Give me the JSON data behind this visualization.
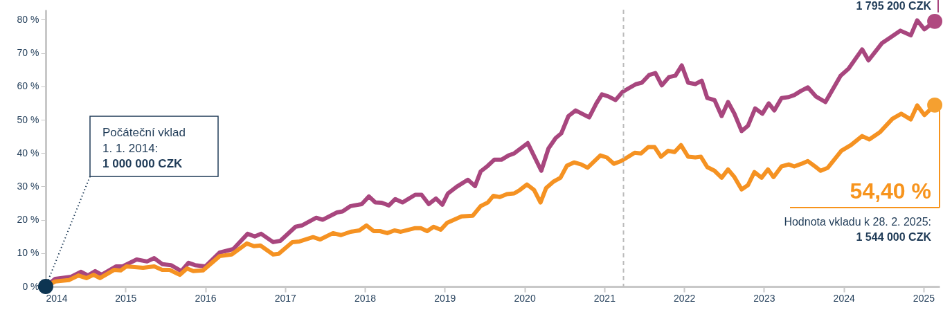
{
  "chart_data": {
    "type": "line",
    "xlim": [
      2014,
      2025.2
    ],
    "xticks": [
      2014,
      2015,
      2016,
      2017,
      2018,
      2019,
      2020,
      2021,
      2022,
      2023,
      2024,
      2025
    ],
    "ylim": [
      0,
      83
    ],
    "yticks": [
      {
        "value": 0,
        "label": "0 %"
      },
      {
        "value": 10,
        "label": "10 %"
      },
      {
        "value": 20,
        "label": "20 %"
      },
      {
        "value": 30,
        "label": "30 %"
      },
      {
        "value": 40,
        "label": "40 %"
      },
      {
        "value": 50,
        "label": "50 %"
      },
      {
        "value": 60,
        "label": "60 %"
      },
      {
        "value": 70,
        "label": "70 %"
      },
      {
        "value": 80,
        "label": "80 %"
      }
    ],
    "grid": false,
    "line_style": "solid",
    "marker": "none",
    "series": [
      {
        "color": "#a8467e",
        "x": [
          2014.0,
          2014.12,
          2014.32,
          2014.44,
          2014.53,
          2014.62,
          2014.7,
          2014.88,
          2014.96,
          2015.14,
          2015.27,
          2015.36,
          2015.46,
          2015.57,
          2015.7,
          2015.79,
          2015.87,
          2016.0,
          2016.18,
          2016.35,
          2016.53,
          2016.62,
          2016.7,
          2016.85,
          2016.94,
          2017.13,
          2017.21,
          2017.39,
          2017.47,
          2017.65,
          2017.72,
          2017.82,
          2017.96,
          2018.05,
          2018.13,
          2018.21,
          2018.3,
          2018.38,
          2018.47,
          2018.63,
          2018.71,
          2018.8,
          2018.89,
          2018.97,
          2019.04,
          2019.15,
          2019.29,
          2019.38,
          2019.45,
          2019.54,
          2019.62,
          2019.71,
          2019.8,
          2019.87,
          2020.04,
          2020.21,
          2020.3,
          2020.39,
          2020.46,
          2020.55,
          2020.64,
          2020.81,
          2020.9,
          2020.97,
          2021.05,
          2021.14,
          2021.23,
          2021.31,
          2021.4,
          2021.47,
          2021.56,
          2021.64,
          2021.72,
          2021.81,
          2021.89,
          2021.97,
          2022.05,
          2022.14,
          2022.22,
          2022.29,
          2022.38,
          2022.47,
          2022.55,
          2022.63,
          2022.72,
          2022.8,
          2022.89,
          2022.98,
          2023.06,
          2023.13,
          2023.22,
          2023.31,
          2023.38,
          2023.46,
          2023.55,
          2023.65,
          2023.77,
          2023.96,
          2024.06,
          2024.23,
          2024.31,
          2024.48,
          2024.58,
          2024.71,
          2024.84,
          2024.92,
          2025.01,
          2025.14
        ],
        "values": [
          0,
          2.3,
          2.9,
          4.4,
          3.3,
          4.6,
          3.5,
          6,
          6,
          8.1,
          7.5,
          8.5,
          6.7,
          6.4,
          4.6,
          7.1,
          6.4,
          6,
          10.2,
          11.2,
          15.8,
          15,
          15.8,
          13.3,
          13.7,
          17.9,
          18.3,
          20.6,
          20,
          22.2,
          22.5,
          24.1,
          24.7,
          27,
          25.2,
          25.1,
          24.3,
          26.2,
          25.2,
          27.5,
          27.5,
          24.7,
          26.4,
          24.5,
          27.9,
          29.9,
          32,
          30.1,
          34.5,
          36.2,
          38,
          38,
          39.3,
          39.9,
          43,
          34.7,
          41.4,
          44.5,
          45.9,
          51.1,
          52.8,
          50.7,
          54.9,
          57.6,
          57,
          55.9,
          58.4,
          59.5,
          60.7,
          61.1,
          63.4,
          64,
          60.3,
          62.8,
          63.2,
          66.3,
          61.1,
          60.7,
          61.7,
          56.5,
          55.9,
          51.1,
          55.3,
          51.8,
          46.6,
          48.2,
          53.4,
          51.8,
          54.9,
          52.8,
          56.5,
          56.8,
          57.4,
          58.6,
          59.7,
          57,
          55.3,
          63.2,
          65.3,
          71.1,
          67.8,
          73,
          74.6,
          76.7,
          75.3,
          79.8,
          77.1,
          79.5
        ]
      },
      {
        "color": "#f59222",
        "x": [
          2014.0,
          2014.12,
          2014.29,
          2014.41,
          2014.51,
          2014.6,
          2014.68,
          2014.86,
          2014.94,
          2015.01,
          2015.22,
          2015.36,
          2015.46,
          2015.55,
          2015.68,
          2015.77,
          2015.85,
          2015.97,
          2016.18,
          2016.33,
          2016.52,
          2016.61,
          2016.69,
          2016.85,
          2016.92,
          2017.09,
          2017.18,
          2017.35,
          2017.44,
          2017.6,
          2017.7,
          2017.82,
          2017.93,
          2018.02,
          2018.11,
          2018.19,
          2018.28,
          2018.37,
          2018.45,
          2018.63,
          2018.7,
          2018.78,
          2018.86,
          2018.95,
          2019.03,
          2019.21,
          2019.35,
          2019.45,
          2019.54,
          2019.61,
          2019.69,
          2019.78,
          2019.87,
          2019.94,
          2020.03,
          2020.12,
          2020.2,
          2020.27,
          2020.36,
          2020.45,
          2020.53,
          2020.62,
          2020.71,
          2020.79,
          2020.95,
          2021.03,
          2021.12,
          2021.21,
          2021.3,
          2021.38,
          2021.46,
          2021.55,
          2021.63,
          2021.71,
          2021.8,
          2021.88,
          2021.96,
          2022.05,
          2022.14,
          2022.21,
          2022.29,
          2022.38,
          2022.47,
          2022.55,
          2022.63,
          2022.72,
          2022.8,
          2022.88,
          2022.97,
          2023.05,
          2023.12,
          2023.22,
          2023.31,
          2023.38,
          2023.47,
          2023.55,
          2023.65,
          2023.71,
          2023.8,
          2023.97,
          2024.09,
          2024.23,
          2024.32,
          2024.45,
          2024.61,
          2024.72,
          2024.84,
          2024.92,
          2025.01,
          2025.14
        ],
        "values": [
          0,
          1.5,
          1.9,
          3.3,
          2.5,
          3.5,
          2.5,
          5,
          4.8,
          6,
          5.6,
          6,
          5,
          5,
          3.5,
          5.4,
          4.6,
          4.8,
          9.1,
          9.6,
          12.9,
          12.1,
          12.3,
          9.6,
          9.8,
          13.3,
          13.5,
          14.8,
          14.1,
          16,
          15.4,
          16.4,
          16.8,
          18.3,
          16.6,
          16.6,
          16,
          16.8,
          16.4,
          17.5,
          17.5,
          16.6,
          17.9,
          17,
          19.1,
          21,
          21.2,
          24.1,
          25.2,
          27.2,
          26.8,
          27.7,
          27.9,
          28.9,
          30.6,
          28.9,
          25.2,
          29.5,
          31.4,
          32.6,
          36.2,
          37.2,
          36.6,
          35.6,
          39.3,
          38.7,
          36.8,
          37.6,
          38.9,
          40.1,
          39.9,
          41.8,
          41.8,
          38.9,
          40.7,
          40.3,
          42.4,
          38.9,
          38.7,
          38.9,
          35.8,
          34.7,
          32.6,
          35.1,
          32.8,
          29.1,
          30.4,
          34.3,
          32.6,
          35.1,
          32.8,
          36,
          36.6,
          36,
          36.8,
          37.6,
          35.8,
          34.7,
          35.6,
          40.7,
          42.4,
          45.1,
          44.1,
          46.2,
          50.3,
          51.8,
          50.1,
          54.3,
          51.4,
          54.4
        ]
      },
      {
        "type": "scatter",
        "marker": "circle",
        "color": "#0d3552",
        "x": [
          2014
        ],
        "values": [
          0
        ]
      },
      {
        "type": "scatter",
        "marker": "circle",
        "color": "#b04a80",
        "x": [
          2025.14
        ],
        "values": [
          79.5
        ]
      },
      {
        "type": "scatter",
        "marker": "circle",
        "color": "#f5a030",
        "x": [
          2025.14
        ],
        "values": [
          54.4
        ]
      }
    ],
    "ref_lines": [
      {
        "axis": "x",
        "value": 2021.24,
        "color": "#bbbbbb",
        "line_style": "dashed"
      }
    ],
    "annotations": [
      {
        "text": "Počáteční vklad\n1. 1. 2014:\n1 000 000 CZK",
        "x": 2014,
        "y": 0
      },
      "1 795 200 CZK",
      "54,40 %",
      "Hodnota vkladu k 28. 2. 2025:\n1 544 000 CZK"
    ]
  }
}
